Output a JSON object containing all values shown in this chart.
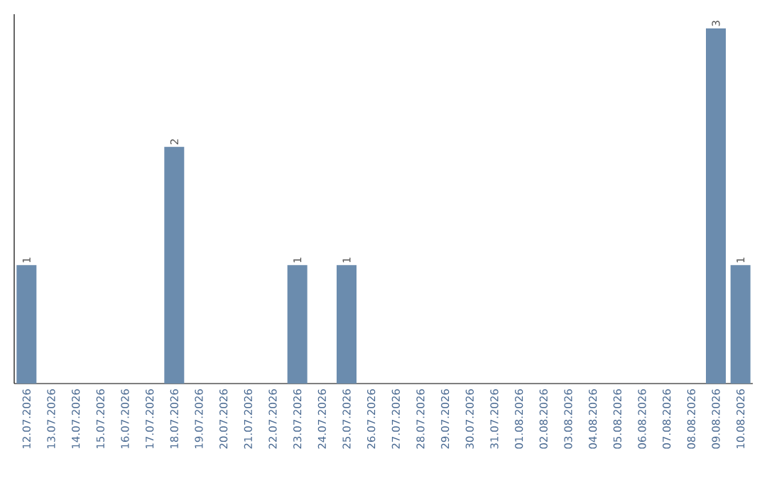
{
  "chart_data": {
    "type": "bar",
    "categories": [
      "12.07.2026",
      "13.07.2026",
      "14.07.2026",
      "15.07.2026",
      "16.07.2026",
      "17.07.2026",
      "18.07.2026",
      "19.07.2026",
      "20.07.2026",
      "21.07.2026",
      "22.07.2026",
      "23.07.2026",
      "24.07.2026",
      "25.07.2026",
      "26.07.2026",
      "27.07.2026",
      "28.07.2026",
      "29.07.2026",
      "30.07.2026",
      "31.07.2026",
      "01.08.2026",
      "02.08.2026",
      "03.08.2026",
      "04.08.2026",
      "05.08.2026",
      "06.08.2026",
      "07.08.2026",
      "08.08.2026",
      "09.08.2026",
      "10.08.2026"
    ],
    "values": [
      1,
      0,
      0,
      0,
      0,
      0,
      2,
      0,
      0,
      0,
      0,
      1,
      0,
      1,
      0,
      0,
      0,
      0,
      0,
      0,
      0,
      0,
      0,
      0,
      0,
      0,
      0,
      0,
      3,
      1
    ],
    "value_labels": [
      "1",
      null,
      null,
      null,
      null,
      null,
      "2",
      null,
      null,
      null,
      null,
      "1",
      null,
      "1",
      null,
      null,
      null,
      null,
      null,
      null,
      null,
      null,
      null,
      null,
      null,
      null,
      null,
      null,
      "3",
      "1"
    ],
    "color": "#6b8cae",
    "ylim": [
      0,
      3.12
    ],
    "tick_labels": "x"
  }
}
